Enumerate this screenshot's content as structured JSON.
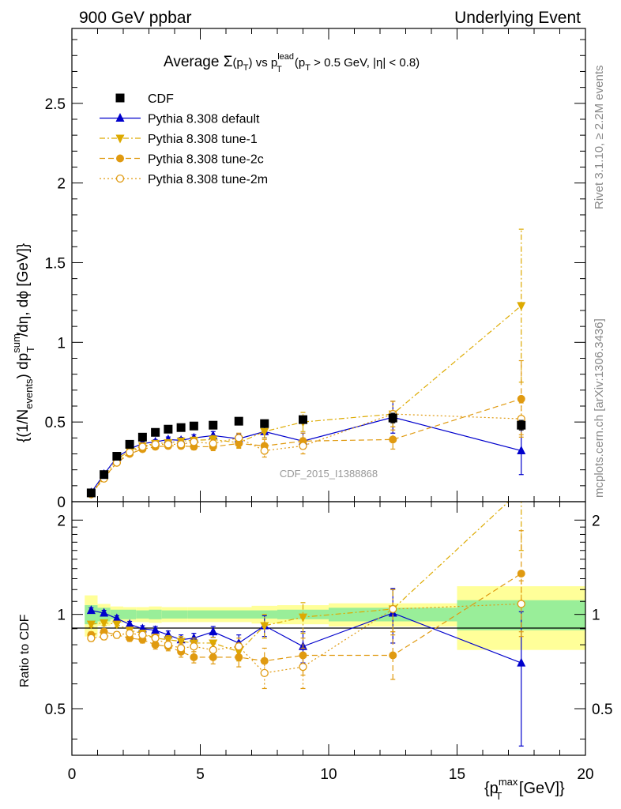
{
  "header": {
    "left": "900 GeV ppbar",
    "right": "Underlying Event"
  },
  "side": {
    "rivet": "Rivet 3.1.10, ≥ 2.2M events",
    "mcplots": "mcplots.cern.ch [arXiv:1306.3436]"
  },
  "chart_data": [
    {
      "type": "scatter",
      "title": {
        "pre": "Average ",
        "sigma": "Σ",
        "p1": "(p",
        "p1sub": "T",
        "p1close": ")",
        "vs": " vs ",
        "p2": "p",
        "p2sup": "lead",
        "p2sub": "T",
        "cut": " (p",
        "cutsub": "T",
        "cut2": " > 0.5 GeV, |η| < 0.8)"
      },
      "ylabel": {
        "a": "{(1/N",
        "a_sub": "events",
        "b": ") dp",
        "b_sup": "sum",
        "b_sub": "T",
        "c": "/dη, dϕ [GeV]}"
      },
      "analysis_label": "CDF_2015_I1388868",
      "xlim": [
        0,
        20
      ],
      "ylim": [
        0,
        2.97
      ],
      "yticks": [
        {
          "v": 0,
          "label": "0"
        },
        {
          "v": 0.5,
          "label": "0.5"
        },
        {
          "v": 1,
          "label": "1"
        },
        {
          "v": 1.5,
          "label": "1.5"
        },
        {
          "v": 2,
          "label": "2"
        },
        {
          "v": 2.5,
          "label": "2.5"
        }
      ],
      "x": [
        0.75,
        1.25,
        1.75,
        2.25,
        2.75,
        3.25,
        3.75,
        4.25,
        4.75,
        5.5,
        6.5,
        7.5,
        9.0,
        12.5,
        17.5
      ],
      "series": [
        {
          "name": "CDF",
          "marker": "square",
          "color": "#000000",
          "line": "none",
          "values": [
            0.055,
            0.17,
            0.285,
            0.36,
            0.405,
            0.435,
            0.455,
            0.465,
            0.475,
            0.48,
            0.505,
            0.49,
            0.515,
            0.525,
            0.48
          ],
          "errors": [
            0.005,
            0.008,
            0.01,
            0.012,
            0.012,
            0.012,
            0.012,
            0.012,
            0.012,
            0.015,
            0.018,
            0.018,
            0.02,
            0.03,
            0.03
          ]
        },
        {
          "name": "Pythia 8.308 default",
          "marker": "triangle-up",
          "color": "#0000cc",
          "line": "solid",
          "values": [
            0.057,
            0.172,
            0.278,
            0.33,
            0.365,
            0.375,
            0.39,
            0.385,
            0.4,
            0.415,
            0.395,
            0.44,
            0.38,
            0.53,
            0.32
          ],
          "errors": [
            0.004,
            0.006,
            0.008,
            0.01,
            0.012,
            0.014,
            0.016,
            0.018,
            0.02,
            0.025,
            0.03,
            0.04,
            0.05,
            0.1,
            0.15
          ]
        },
        {
          "name": "Pythia 8.308 tune-1",
          "marker": "triangle-down",
          "color": "#ddaa00",
          "line": "dashdot",
          "values": [
            0.05,
            0.16,
            0.265,
            0.32,
            0.35,
            0.365,
            0.37,
            0.38,
            0.385,
            0.39,
            0.37,
            0.44,
            0.5,
            0.55,
            1.23
          ],
          "errors": [
            0.004,
            0.006,
            0.008,
            0.01,
            0.012,
            0.014,
            0.016,
            0.018,
            0.02,
            0.025,
            0.03,
            0.04,
            0.06,
            0.08,
            0.48
          ]
        },
        {
          "name": "Pythia 8.308 tune-2c",
          "marker": "circle",
          "color": "#e09a10",
          "line": "dashed",
          "values": [
            0.048,
            0.15,
            0.245,
            0.3,
            0.33,
            0.345,
            0.35,
            0.35,
            0.345,
            0.345,
            0.365,
            0.35,
            0.38,
            0.39,
            0.645
          ],
          "errors": [
            0.004,
            0.006,
            0.008,
            0.01,
            0.012,
            0.014,
            0.016,
            0.018,
            0.02,
            0.025,
            0.03,
            0.04,
            0.05,
            0.06,
            0.24
          ]
        },
        {
          "name": "Pythia 8.308 tune-2m",
          "marker": "circle-open",
          "color": "#e09a10",
          "line": "dotted",
          "values": [
            0.047,
            0.145,
            0.245,
            0.31,
            0.345,
            0.36,
            0.36,
            0.36,
            0.375,
            0.365,
            0.4,
            0.32,
            0.35,
            0.55,
            0.52
          ],
          "errors": [
            0.004,
            0.006,
            0.008,
            0.01,
            0.012,
            0.014,
            0.016,
            0.018,
            0.02,
            0.025,
            0.03,
            0.04,
            0.05,
            0.08,
            0.1
          ]
        }
      ]
    },
    {
      "type": "scatter",
      "ylabel": "Ratio to CDF",
      "xlabel": {
        "a": "{p",
        "sup": "max",
        "sub": "T",
        "b": " [GeV]}"
      },
      "xlim": [
        0,
        20
      ],
      "ylim": [
        0.355,
        2.29
      ],
      "yscale": "log",
      "xticks": [
        {
          "v": 0,
          "label": "0"
        },
        {
          "v": 5,
          "label": "5"
        },
        {
          "v": 10,
          "label": "10"
        },
        {
          "v": 15,
          "label": "15"
        },
        {
          "v": 20,
          "label": "20"
        }
      ],
      "yticks": [
        {
          "v": 0.5,
          "label": "0.5"
        },
        {
          "v": 1,
          "label": "1"
        },
        {
          "v": 2,
          "label": "2"
        }
      ],
      "bands": {
        "edges": [
          0.5,
          1.0,
          1.5,
          2.0,
          2.5,
          3.0,
          3.5,
          4.0,
          4.5,
          5.0,
          6.0,
          7.0,
          8.0,
          10.0,
          15.0,
          20.0
        ],
        "green": [
          0.07,
          0.05,
          0.035,
          0.035,
          0.03,
          0.035,
          0.03,
          0.03,
          0.03,
          0.03,
          0.03,
          0.03,
          0.035,
          0.05,
          0.11
        ],
        "yellow": [
          0.15,
          0.08,
          0.06,
          0.055,
          0.055,
          0.06,
          0.055,
          0.055,
          0.055,
          0.055,
          0.055,
          0.065,
          0.07,
          0.085,
          0.23
        ]
      },
      "x": [
        0.75,
        1.25,
        1.75,
        2.25,
        2.75,
        3.25,
        3.75,
        4.25,
        4.75,
        5.5,
        6.5,
        7.5,
        9.0,
        12.5,
        17.5
      ],
      "series": [
        {
          "name": "Pythia 8.308 default",
          "marker": "triangle-up",
          "color": "#0000cc",
          "line": "solid",
          "values": [
            1.03,
            1.01,
            0.97,
            0.93,
            0.9,
            0.89,
            0.86,
            0.83,
            0.84,
            0.88,
            0.81,
            0.92,
            0.79,
            1.01,
            0.7
          ],
          "errors": [
            0.02,
            0.02,
            0.02,
            0.02,
            0.02,
            0.025,
            0.025,
            0.03,
            0.03,
            0.035,
            0.05,
            0.07,
            0.09,
            0.2,
            0.32
          ]
        },
        {
          "name": "Pythia 8.308 tune-1",
          "marker": "triangle-down",
          "color": "#ddaa00",
          "line": "dashdot",
          "values": [
            0.93,
            0.94,
            0.93,
            0.89,
            0.87,
            0.84,
            0.83,
            0.82,
            0.81,
            0.81,
            0.76,
            0.92,
            0.98,
            1.04,
            2.5
          ],
          "errors": [
            0.02,
            0.02,
            0.02,
            0.02,
            0.02,
            0.025,
            0.025,
            0.03,
            0.03,
            0.035,
            0.05,
            0.08,
            0.11,
            0.16,
            0.9
          ]
        },
        {
          "name": "Pythia 8.308 tune-2c",
          "marker": "circle",
          "color": "#e09a10",
          "line": "dashed",
          "values": [
            0.86,
            0.88,
            0.86,
            0.84,
            0.83,
            0.8,
            0.79,
            0.76,
            0.73,
            0.73,
            0.73,
            0.71,
            0.74,
            0.74,
            1.35
          ],
          "errors": [
            0.02,
            0.02,
            0.02,
            0.02,
            0.02,
            0.025,
            0.025,
            0.03,
            0.03,
            0.035,
            0.05,
            0.07,
            0.1,
            0.12,
            0.5
          ]
        },
        {
          "name": "Pythia 8.308 tune-2m",
          "marker": "circle-open",
          "color": "#e09a10",
          "line": "dotted",
          "values": [
            0.84,
            0.85,
            0.86,
            0.87,
            0.86,
            0.84,
            0.8,
            0.78,
            0.79,
            0.77,
            0.79,
            0.65,
            0.68,
            1.04,
            1.08
          ],
          "errors": [
            0.02,
            0.02,
            0.02,
            0.02,
            0.02,
            0.025,
            0.025,
            0.03,
            0.03,
            0.035,
            0.05,
            0.07,
            0.1,
            0.16,
            0.2
          ]
        }
      ]
    }
  ]
}
